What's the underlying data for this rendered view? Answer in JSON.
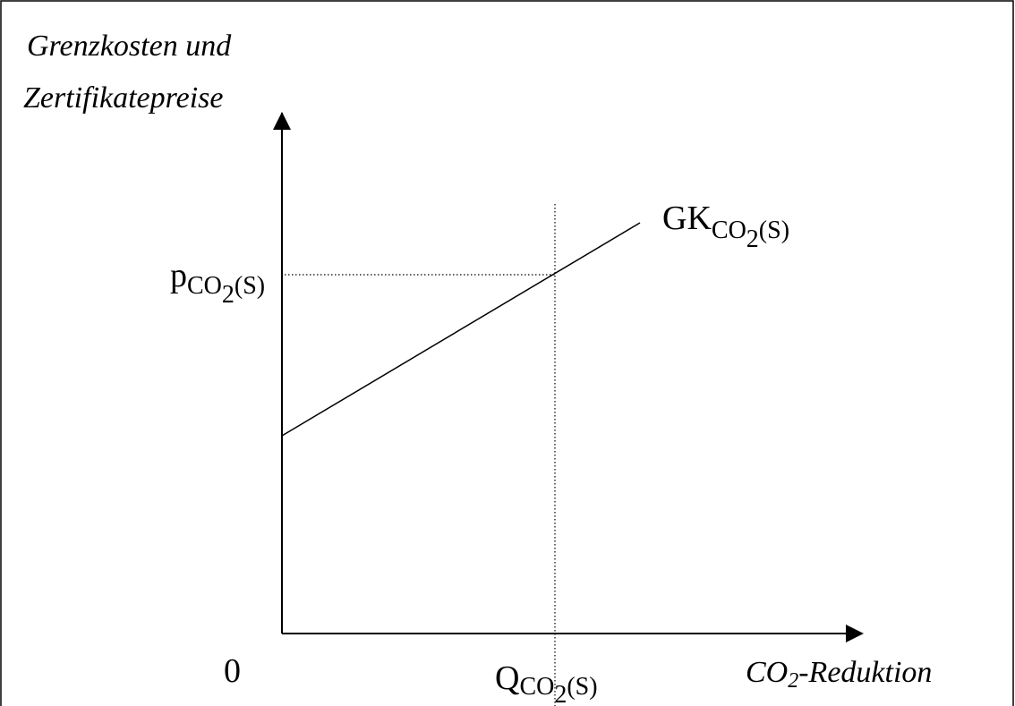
{
  "y_axis_label": [
    "Grenzkosten und",
    "Zertifikatepreise"
  ],
  "x_axis_label": {
    "base": "CO",
    "sub": "2",
    "rest": "-Reduktion"
  },
  "origin": "0",
  "curve_label": {
    "base": "GK",
    "sub": "CO",
    "subsub": "2",
    "subrest": "(S)"
  },
  "price_label": {
    "base": "p",
    "sub": "CO",
    "subsub": "2",
    "subrest": "(S)"
  },
  "quantity_label": {
    "base": "Q",
    "sub": "CO",
    "subsub": "2",
    "subrest": "(S)"
  }
}
